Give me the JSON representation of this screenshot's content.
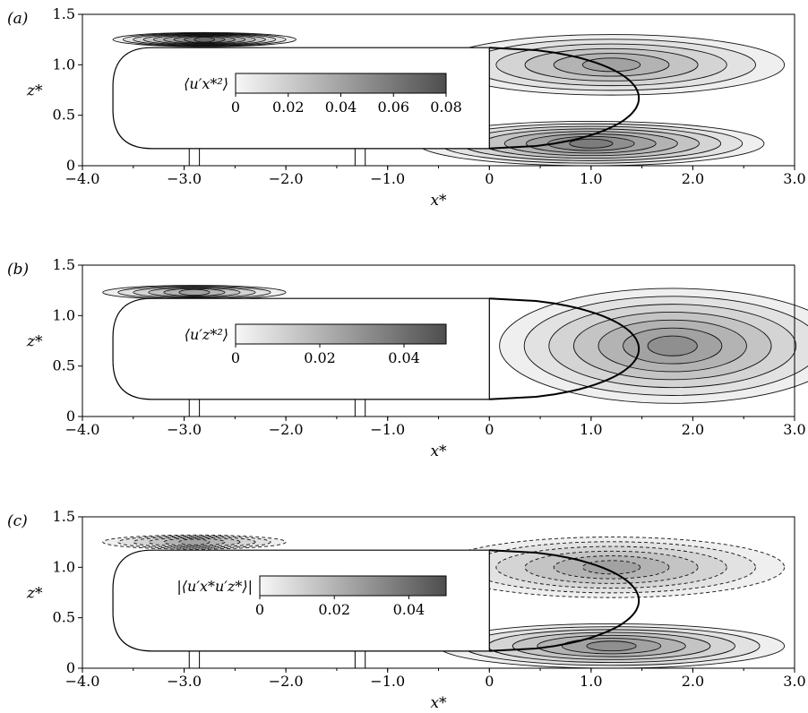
{
  "chart_data": [
    {
      "type": "contour",
      "panel": "(a)",
      "xlabel": "x*",
      "ylabel": "z*",
      "xlim": [
        -4.0,
        3.0
      ],
      "ylim": [
        0,
        1.5
      ],
      "x_ticks": [
        "−4.0",
        "−3.0",
        "−2.0",
        "−1.0",
        "0",
        "1.0",
        "2.0",
        "3.0"
      ],
      "x_tick_values": [
        -4,
        -3,
        -2,
        -1,
        0,
        1,
        2,
        3
      ],
      "y_ticks": [
        "0",
        "0.5",
        "1.0",
        "1.5"
      ],
      "y_tick_values": [
        0,
        0.5,
        1.0,
        1.5
      ],
      "colorbar": {
        "label": "⟨u′x*²⟩",
        "ticks": [
          "0",
          "0.02",
          "0.04",
          "0.06",
          "0.08"
        ],
        "tick_values": [
          0,
          0.02,
          0.04,
          0.06,
          0.08
        ],
        "range": [
          0,
          0.08
        ]
      },
      "peak_regions": [
        {
          "x": 1.2,
          "z": 1.0,
          "level": 0.05
        },
        {
          "x": 1.0,
          "z": 0.22,
          "level": 0.06
        },
        {
          "x": -2.8,
          "z": 1.25,
          "level": 0.07
        }
      ],
      "dashed_negative": false
    },
    {
      "type": "contour",
      "panel": "(b)",
      "xlabel": "x*",
      "ylabel": "z*",
      "xlim": [
        -4.0,
        3.0
      ],
      "ylim": [
        0,
        1.5
      ],
      "x_ticks": [
        "−4.0",
        "−3.0",
        "−2.0",
        "−1.0",
        "0",
        "1.0",
        "2.0",
        "3.0"
      ],
      "x_tick_values": [
        -4,
        -3,
        -2,
        -1,
        0,
        1,
        2,
        3
      ],
      "y_ticks": [
        "0",
        "0.5",
        "1.0",
        "1.5"
      ],
      "y_tick_values": [
        0,
        0.5,
        1.0,
        1.5
      ],
      "colorbar": {
        "label": "⟨u′z*²⟩",
        "ticks": [
          "0",
          "0.02",
          "0.04"
        ],
        "tick_values": [
          0,
          0.02,
          0.04
        ],
        "range": [
          0,
          0.05
        ]
      },
      "peak_regions": [
        {
          "x": 1.8,
          "z": 0.7,
          "level": 0.035
        },
        {
          "x": -2.9,
          "z": 1.23,
          "level": 0.03
        }
      ],
      "dashed_negative": false
    },
    {
      "type": "contour",
      "panel": "(c)",
      "xlabel": "x*",
      "ylabel": "z*",
      "xlim": [
        -4.0,
        3.0
      ],
      "ylim": [
        0,
        1.5
      ],
      "x_ticks": [
        "−4.0",
        "−3.0",
        "−2.0",
        "−1.0",
        "0",
        "1.0",
        "2.0",
        "3.0"
      ],
      "x_tick_values": [
        -4,
        -3,
        -2,
        -1,
        0,
        1,
        2,
        3
      ],
      "y_ticks": [
        "0",
        "0.5",
        "1.0",
        "1.5"
      ],
      "y_tick_values": [
        0,
        0.5,
        1.0,
        1.5
      ],
      "colorbar": {
        "label": "|⟨u′x*u′z*⟩|",
        "ticks": [
          "0",
          "0.02",
          "0.04"
        ],
        "tick_values": [
          0,
          0.02,
          0.04
        ],
        "range": [
          0,
          0.05
        ]
      },
      "peak_regions": [
        {
          "x": 1.2,
          "z": 1.0,
          "level": 0.03,
          "sign": "negative"
        },
        {
          "x": 1.2,
          "z": 0.22,
          "level": 0.035,
          "sign": "positive"
        },
        {
          "x": -2.9,
          "z": 1.25,
          "level": 0.03,
          "sign": "negative"
        }
      ],
      "dashed_negative": true
    }
  ]
}
